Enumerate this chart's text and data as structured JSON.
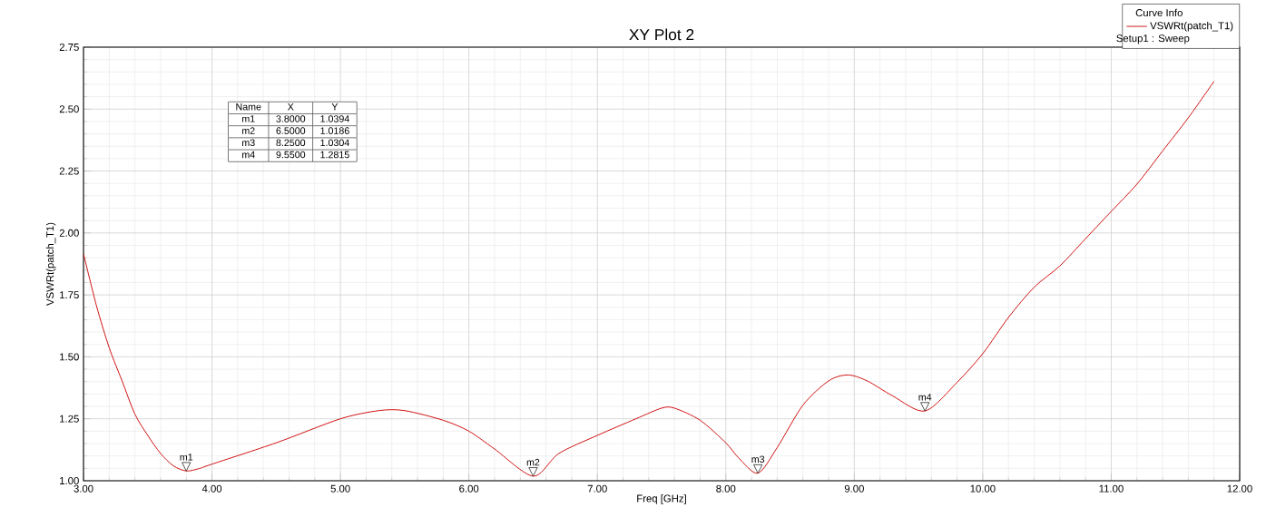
{
  "chart_data": {
    "type": "line",
    "title": "XY Plot 2",
    "xlabel": "Freq [GHz]",
    "ylabel": "VSWRt(patch_T1)",
    "legend_title": "Curve Info",
    "x": [
      3.0,
      3.1,
      3.2,
      3.3,
      3.4,
      3.5,
      3.6,
      3.7,
      3.8,
      3.9,
      4.0,
      4.5,
      5.0,
      5.3,
      5.5,
      5.8,
      6.0,
      6.2,
      6.5,
      6.7,
      7.0,
      7.3,
      7.5,
      7.6,
      7.8,
      8.0,
      8.1,
      8.25,
      8.4,
      8.6,
      8.8,
      8.95,
      9.1,
      9.3,
      9.55,
      9.8,
      10.0,
      10.2,
      10.4,
      10.6,
      10.8,
      11.0,
      11.2,
      11.4,
      11.6,
      11.8
    ],
    "series": [
      {
        "name": "VSWRt(patch_T1)",
        "color": "#cc0000",
        "values": [
          1.916,
          1.708,
          1.537,
          1.403,
          1.269,
          1.183,
          1.11,
          1.06,
          1.0394,
          1.049,
          1.067,
          1.153,
          1.25,
          1.283,
          1.283,
          1.244,
          1.2,
          1.128,
          1.0186,
          1.11,
          1.183,
          1.25,
          1.293,
          1.293,
          1.244,
          1.153,
          1.092,
          1.0304,
          1.134,
          1.305,
          1.403,
          1.427,
          1.403,
          1.342,
          1.2815,
          1.397,
          1.513,
          1.659,
          1.781,
          1.867,
          1.977,
          2.087,
          2.197,
          2.331,
          2.465,
          2.612
        ]
      }
    ],
    "xlim": [
      3,
      12
    ],
    "ylim": [
      1,
      2.75
    ],
    "xticks": [
      {
        "value": 3,
        "label": "3.00"
      },
      {
        "value": 4,
        "label": "4.00"
      },
      {
        "value": 5,
        "label": "5.00"
      },
      {
        "value": 6,
        "label": "6.00"
      },
      {
        "value": 7,
        "label": "7.00"
      },
      {
        "value": 8,
        "label": "8.00"
      },
      {
        "value": 9,
        "label": "9.00"
      },
      {
        "value": 10,
        "label": "10.00"
      },
      {
        "value": 11,
        "label": "11.00"
      },
      {
        "value": 12,
        "label": "12.00"
      }
    ],
    "yticks": [
      {
        "value": 1,
        "label": "1.00"
      },
      {
        "value": 1.25,
        "label": "1.25"
      },
      {
        "value": 1.5,
        "label": "1.50"
      },
      {
        "value": 1.75,
        "label": "1.75"
      },
      {
        "value": 2,
        "label": "2.00"
      },
      {
        "value": 2.25,
        "label": "2.25"
      },
      {
        "value": 2.5,
        "label": "2.50"
      },
      {
        "value": 2.75,
        "label": "2.75"
      }
    ],
    "grid": true,
    "legend": "top right",
    "annotations": [
      {
        "text": "m1",
        "x": 3.8,
        "y": 1.0394
      },
      {
        "text": "m2",
        "x": 6.5,
        "y": 1.0186
      },
      {
        "text": "m3",
        "x": 8.25,
        "y": 1.0304
      },
      {
        "text": "m4",
        "x": 9.55,
        "y": 1.2815
      },
      "Name",
      "X",
      "Y",
      "m1",
      "3.8000",
      "1.0394",
      "m2",
      "6.5000",
      "1.0186",
      "m3",
      "8.2500",
      "1.0304",
      "m4",
      "9.5500",
      "1.2815",
      "Setup1 : Sweep"
    ]
  }
}
